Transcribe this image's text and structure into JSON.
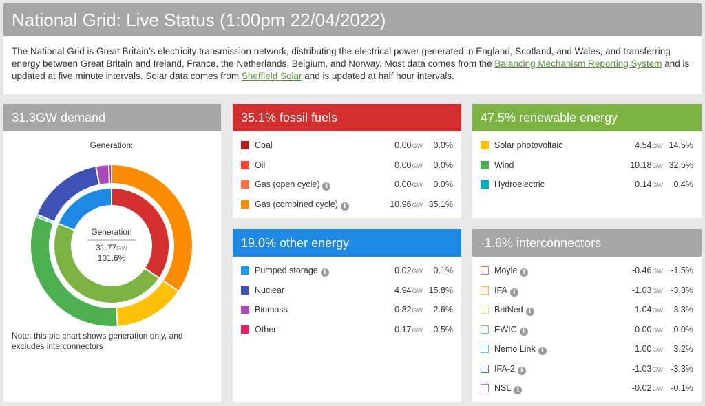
{
  "title": "National Grid: Live Status (1:00pm 22/04/2022)",
  "intro": {
    "text1": "The National Grid is Great Britain’s electricity transmission network, distributing the electrical power generated in England, Scotland, and Wales, and transferring energy between Great Britain and Ireland, France, the Netherlands, Belgium, and Norway. Most data comes from the ",
    "link1": "Balancing Mechanism Reporting System",
    "text2": " and is updated at five minute intervals. Solar data comes from ",
    "link2": "Sheffield Solar",
    "text3": " and is updated at half hour intervals."
  },
  "demand": {
    "header": "31.3GW demand",
    "generation_label": "Generation:",
    "center_title": "Generation",
    "center_value": "31.77",
    "center_unit": "GW",
    "center_pct": "101.6%",
    "note": "Note: this pie chart shows generation only, and excludes interconnectors"
  },
  "unit": "GW",
  "fossil": {
    "header": "35.1% fossil fuels",
    "color": "#d32f2f",
    "items": [
      {
        "label": "Coal",
        "value": "0.00",
        "pct": "0.0%",
        "color": "#b71c1c",
        "info": false
      },
      {
        "label": "Oil",
        "value": "0.00",
        "pct": "0.0%",
        "color": "#f44336",
        "info": false
      },
      {
        "label": "Gas (open cycle)",
        "value": "0.00",
        "pct": "0.0%",
        "color": "#ff7043",
        "info": true
      },
      {
        "label": "Gas (combined cycle)",
        "value": "10.96",
        "pct": "35.1%",
        "color": "#fb8c00",
        "info": true
      }
    ]
  },
  "renewable": {
    "header": "47.5% renewable energy",
    "color": "#7cb342",
    "items": [
      {
        "label": "Solar photovoltaic",
        "value": "4.54",
        "pct": "14.5%",
        "color": "#ffc107",
        "info": false
      },
      {
        "label": "Wind",
        "value": "10.18",
        "pct": "32.5%",
        "color": "#4caf50",
        "info": false
      },
      {
        "label": "Hydroelectric",
        "value": "0.14",
        "pct": "0.4%",
        "color": "#00acc1",
        "info": false
      }
    ]
  },
  "other": {
    "header": "19.0% other energy",
    "color": "#1e88e5",
    "items": [
      {
        "label": "Pumped storage",
        "value": "0.02",
        "pct": "0.1%",
        "color": "#2196f3",
        "info": true
      },
      {
        "label": "Nuclear",
        "value": "4.94",
        "pct": "15.8%",
        "color": "#3f51b5",
        "info": false
      },
      {
        "label": "Biomass",
        "value": "0.82",
        "pct": "2.6%",
        "color": "#ab47bc",
        "info": false
      },
      {
        "label": "Other",
        "value": "0.17",
        "pct": "0.5%",
        "color": "#e91e63",
        "info": false
      }
    ]
  },
  "interconnectors": {
    "header": "-1.6% interconnectors",
    "color": "#a6a6a6",
    "items": [
      {
        "label": "Moyle",
        "value": "-0.46",
        "pct": "-1.5%",
        "color": "#e57373",
        "info": true
      },
      {
        "label": "IFA",
        "value": "-1.03",
        "pct": "-3.3%",
        "color": "#ffb74d",
        "info": true
      },
      {
        "label": "BritNed",
        "value": "1.04",
        "pct": "3.3%",
        "color": "#dce775",
        "info": true
      },
      {
        "label": "EWIC",
        "value": "0.00",
        "pct": "0.0%",
        "color": "#81c784",
        "info": true
      },
      {
        "label": "Nemo Link",
        "value": "1.00",
        "pct": "3.2%",
        "color": "#4dd0e1",
        "info": true
      },
      {
        "label": "IFA-2",
        "value": "-1.03",
        "pct": "-3.3%",
        "color": "#5c6bc0",
        "info": true
      },
      {
        "label": "NSL",
        "value": "-0.02",
        "pct": "-0.1%",
        "color": "#ba68c8",
        "info": true
      }
    ]
  },
  "chart_data": {
    "type": "pie",
    "rings": [
      {
        "name": "",
        "slices": [
          {
            "name": "Fossil fuels",
            "value": 10.96,
            "color": "#d32f2f"
          },
          {
            "name": "Renewable energy",
            "value": 14.86,
            "color": "#7cb342"
          },
          {
            "name": "Other energy",
            "value": 5.95,
            "color": "#1e88e5"
          }
        ]
      },
      {
        "name": "",
        "slices": [
          {
            "name": "Coal",
            "value": 0.0,
            "color": "#b71c1c"
          },
          {
            "name": "Oil",
            "value": 0.0,
            "color": "#f44336"
          },
          {
            "name": "Gas (open cycle)",
            "value": 0.0,
            "color": "#ff7043"
          },
          {
            "name": "Gas (combined cycle)",
            "value": 10.96,
            "color": "#fb8c00"
          },
          {
            "name": "Solar photovoltaic",
            "value": 4.54,
            "color": "#ffc107"
          },
          {
            "name": "Wind",
            "value": 10.18,
            "color": "#4caf50"
          },
          {
            "name": "Hydroelectric",
            "value": 0.14,
            "color": "#00acc1"
          },
          {
            "name": "Pumped storage",
            "value": 0.02,
            "color": "#2196f3"
          },
          {
            "name": "Nuclear",
            "value": 4.94,
            "color": "#3f51b5"
          },
          {
            "name": "Biomass",
            "value": 0.82,
            "color": "#ab47bc"
          },
          {
            "name": "Other",
            "value": 0.17,
            "color": "#e91e63"
          }
        ]
      }
    ]
  }
}
